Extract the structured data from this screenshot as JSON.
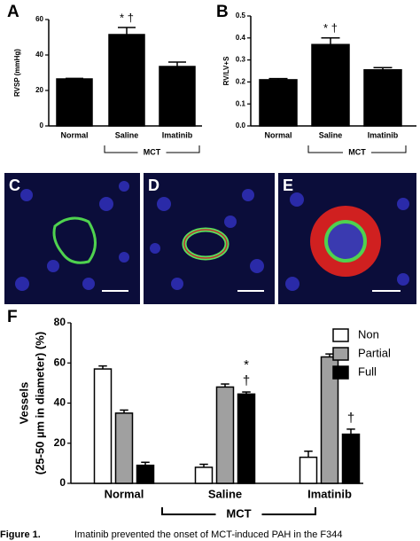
{
  "chart_data": [
    {
      "type": "bar",
      "panel": "A",
      "ylabel": "RVSP (mmHg)",
      "categories": [
        "Normal",
        "Saline",
        "Imatinib"
      ],
      "values": [
        26.5,
        51.5,
        33.5
      ],
      "errors": [
        0.3,
        4,
        2.5
      ],
      "annotations": [
        null,
        "* †",
        null
      ],
      "group_label": "MCT",
      "color": "#000000",
      "ylim": [
        0,
        60
      ],
      "yticks": [
        0,
        20,
        40,
        60
      ]
    },
    {
      "type": "bar",
      "panel": "B",
      "ylabel": "RV/LV+S",
      "categories": [
        "Normal",
        "Saline",
        "Imatinib"
      ],
      "values": [
        0.21,
        0.37,
        0.255
      ],
      "errors": [
        0.005,
        0.03,
        0.01
      ],
      "annotations": [
        null,
        "* †",
        null
      ],
      "group_label": "MCT",
      "color": "#000000",
      "ylim": [
        0,
        0.5
      ],
      "yticks": [
        {
          "value": 0,
          "label": "0.0"
        },
        0.1,
        0.2,
        0.3,
        0.4,
        0.5
      ]
    },
    {
      "type": "grouped-bar",
      "panel": "F",
      "ylabel": [
        "Vessels",
        "(25-50 µm in diameter) (%)"
      ],
      "categories": [
        "Normal",
        "Saline",
        "Imatinib"
      ],
      "group_label": "MCT",
      "series": [
        {
          "name": "Non",
          "color": "#ffffff",
          "values": [
            57,
            8,
            13
          ],
          "errors": [
            1.5,
            1.5,
            3
          ],
          "annotations": [
            null,
            null,
            null
          ]
        },
        {
          "name": "Partial",
          "color": "#a0a0a0",
          "values": [
            35,
            48,
            63
          ],
          "errors": [
            1.5,
            1.5,
            1.5
          ],
          "annotations": [
            null,
            null,
            null
          ]
        },
        {
          "name": "Full",
          "color": "#000000",
          "values": [
            9,
            44.5,
            24.5
          ],
          "errors": [
            1.5,
            1,
            2.5
          ],
          "annotations": [
            null,
            [
              "*",
              "†"
            ],
            [
              "†"
            ]
          ]
        }
      ],
      "ylim": [
        0,
        80
      ],
      "yticks": [
        0,
        20,
        40,
        60,
        80
      ],
      "legend": "top-right"
    }
  ],
  "image_panels": [
    {
      "label": "C"
    },
    {
      "label": "D"
    },
    {
      "label": "E"
    }
  ],
  "caption": {
    "label": "Figure 1.",
    "text": "Imatinib prevented the onset of MCT-induced PAH in the F344"
  }
}
